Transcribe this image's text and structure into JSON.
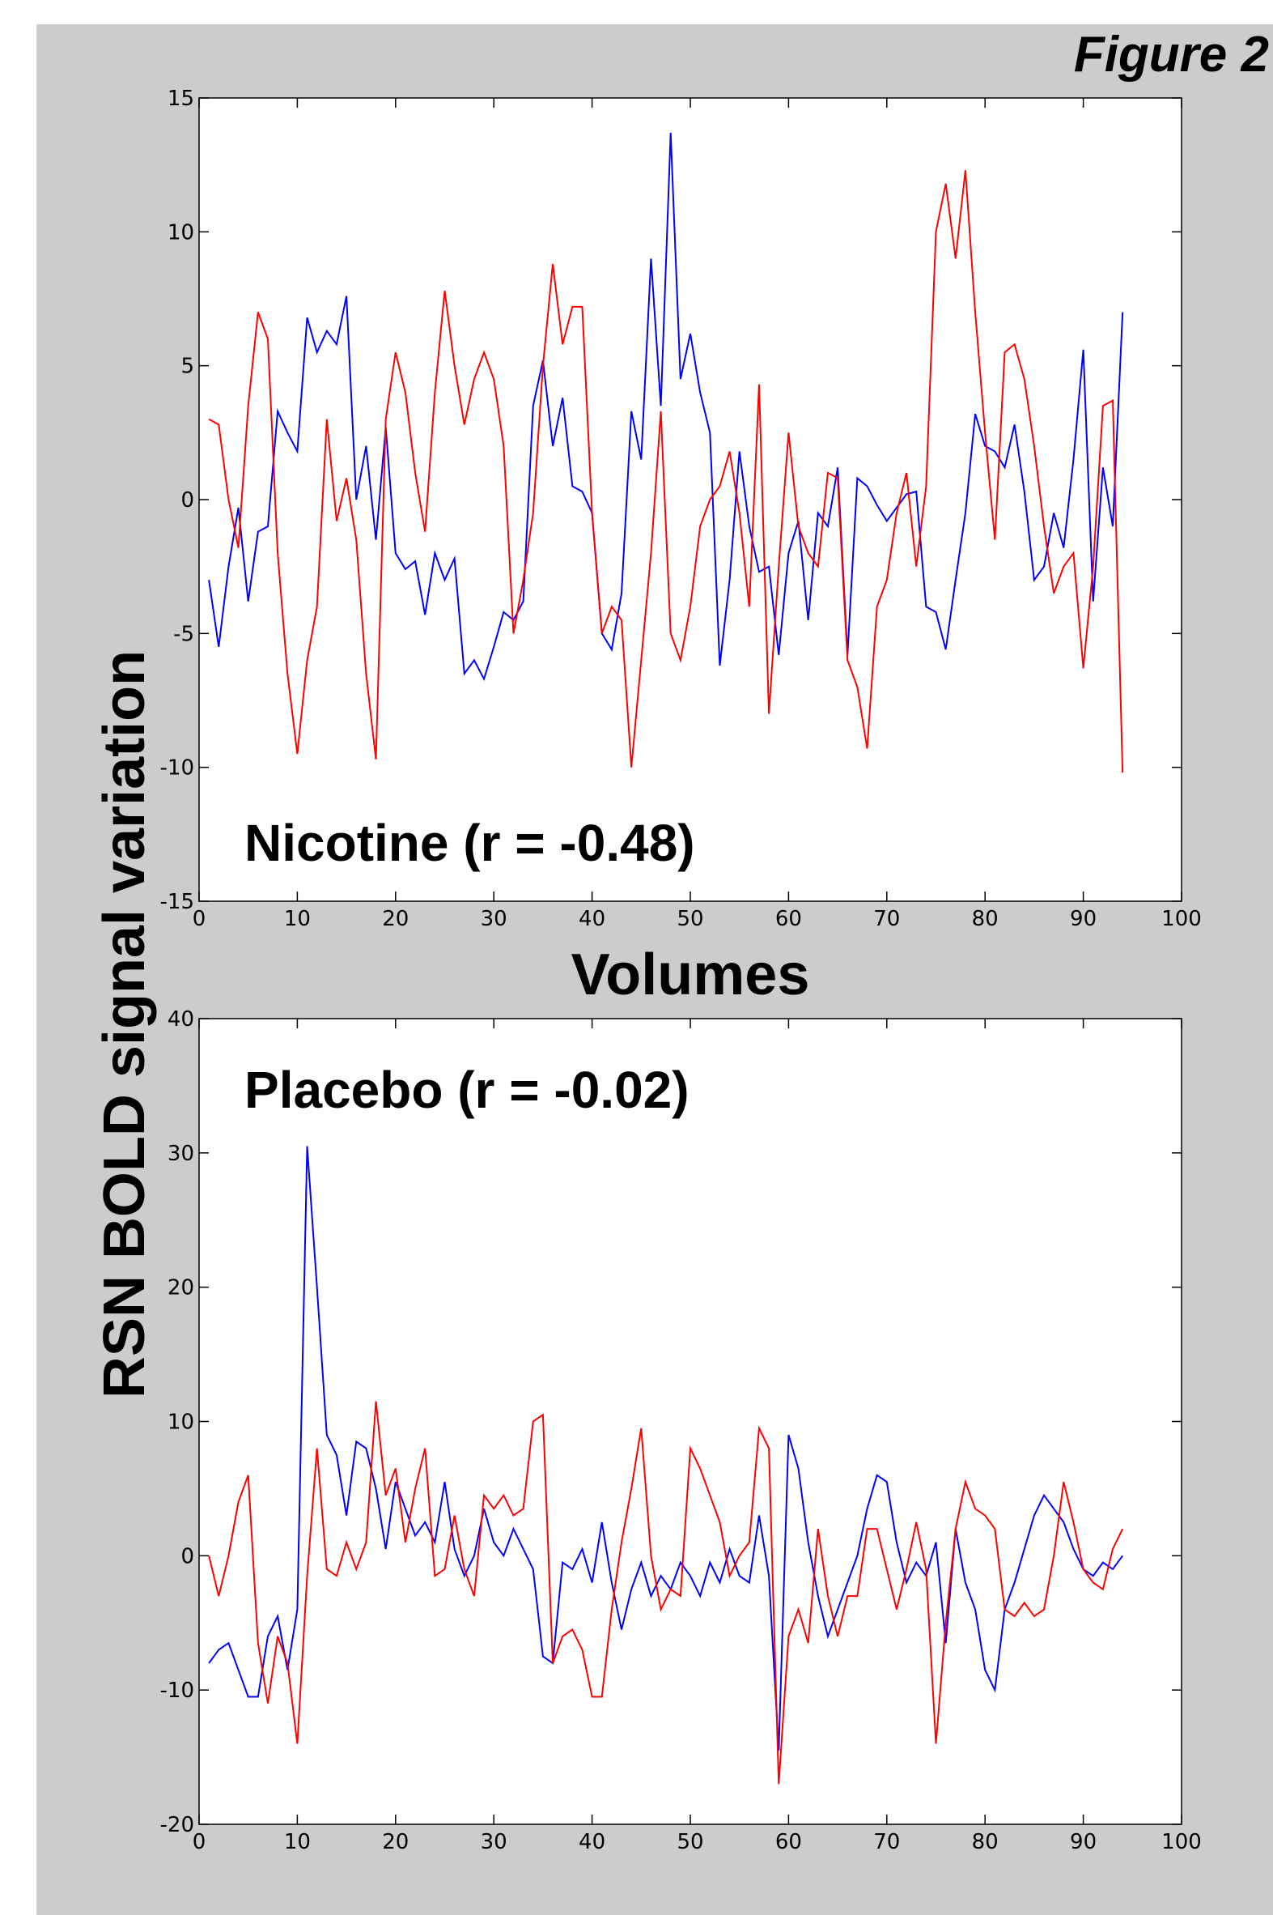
{
  "title": "Figure 2",
  "ylabel": "RSN BOLD signal variation",
  "chart_data": [
    {
      "type": "line",
      "annotation": "Nicotine (r = -0.48)",
      "xlabel": "Volumes",
      "xlim": [
        0,
        100
      ],
      "xticks": [
        0,
        10,
        20,
        30,
        40,
        50,
        60,
        70,
        80,
        90,
        100
      ],
      "ylim": [
        -15,
        15
      ],
      "yticks": [
        -15,
        -10,
        -5,
        0,
        5,
        10,
        15
      ],
      "x": [
        1,
        2,
        3,
        4,
        5,
        6,
        7,
        8,
        9,
        10,
        11,
        12,
        13,
        14,
        15,
        16,
        17,
        18,
        19,
        20,
        21,
        22,
        23,
        24,
        25,
        26,
        27,
        28,
        29,
        30,
        31,
        32,
        33,
        34,
        35,
        36,
        37,
        38,
        39,
        40,
        41,
        42,
        43,
        44,
        45,
        46,
        47,
        48,
        49,
        50,
        51,
        52,
        53,
        54,
        55,
        56,
        57,
        58,
        59,
        60,
        61,
        62,
        63,
        64,
        65,
        66,
        67,
        68,
        69,
        70,
        71,
        72,
        73,
        74,
        75,
        76,
        77,
        78,
        79,
        80,
        81,
        82,
        83,
        84,
        85,
        86,
        87,
        88,
        89,
        90,
        91,
        92,
        93,
        94
      ],
      "series": [
        {
          "color": "#0000ff",
          "values": [
            -3,
            -5.5,
            -2.5,
            -0.3,
            -3.8,
            -1.2,
            -1,
            3.3,
            2.5,
            1.8,
            6.8,
            5.5,
            6.3,
            5.8,
            7.6,
            0,
            2,
            -1.5,
            2.7,
            -2,
            -2.6,
            -2.3,
            -4.3,
            -2,
            -3,
            -2.2,
            -6.5,
            -6,
            -6.7,
            -5.5,
            -4.2,
            -4.5,
            -3.8,
            3.5,
            5.2,
            2,
            3.8,
            0.5,
            0.3,
            -0.5,
            -5,
            -5.6,
            -3.5,
            3.3,
            1.5,
            9,
            3.5,
            13.7,
            4.5,
            6.2,
            4,
            2.5,
            -6.2,
            -3,
            1.8,
            -1,
            -2.7,
            -2.5,
            -5.8,
            -2,
            -0.8,
            -4.5,
            -0.5,
            -1,
            1.2,
            -5.8,
            0.8,
            0.5,
            -0.2,
            -0.8,
            -0.3,
            0.2,
            0.3,
            -4,
            -4.2,
            -5.6,
            -3,
            -0.5,
            3.2,
            2,
            1.8,
            1.2,
            2.8,
            0.3,
            -3,
            -2.5,
            -0.5,
            -1.8,
            1.5,
            5.6,
            -3.8,
            1.2,
            -1,
            7
          ]
        },
        {
          "color": "#ff0000",
          "values": [
            3,
            2.8,
            0,
            -1.8,
            3.5,
            7,
            6,
            -2,
            -6.5,
            -9.5,
            -6,
            -4,
            3,
            -0.8,
            0.8,
            -1.5,
            -6.5,
            -9.7,
            3,
            5.5,
            4,
            1,
            -1.2,
            4,
            7.8,
            5,
            2.8,
            4.5,
            5.5,
            4.5,
            2,
            -5,
            -3,
            -0.5,
            5,
            8.8,
            5.8,
            7.2,
            7.2,
            -0.5,
            -5,
            -4,
            -4.5,
            -10,
            -6,
            -2,
            3.3,
            -5,
            -6,
            -4,
            -1,
            0,
            0.5,
            1.8,
            -0.5,
            -4,
            4.3,
            -8,
            -2.5,
            2.5,
            -1,
            -2,
            -2.5,
            1,
            0.8,
            -6,
            -7,
            -9.3,
            -4,
            -3,
            -0.5,
            1,
            -2.5,
            0.5,
            10,
            11.8,
            9,
            12.3,
            7,
            2.5,
            -1.5,
            5.5,
            5.8,
            4.5,
            2,
            -1,
            -3.5,
            -2.5,
            -2,
            -6.3,
            -2.5,
            3.5,
            3.7,
            -10.2
          ]
        }
      ]
    },
    {
      "type": "line",
      "annotation": "Placebo (r = -0.02)",
      "xlim": [
        0,
        100
      ],
      "xticks": [
        0,
        10,
        20,
        30,
        40,
        50,
        60,
        70,
        80,
        90,
        100
      ],
      "ylim": [
        -20,
        40
      ],
      "yticks": [
        -20,
        -10,
        0,
        10,
        20,
        30,
        40
      ],
      "x": [
        1,
        2,
        3,
        4,
        5,
        6,
        7,
        8,
        9,
        10,
        11,
        12,
        13,
        14,
        15,
        16,
        17,
        18,
        19,
        20,
        21,
        22,
        23,
        24,
        25,
        26,
        27,
        28,
        29,
        30,
        31,
        32,
        33,
        34,
        35,
        36,
        37,
        38,
        39,
        40,
        41,
        42,
        43,
        44,
        45,
        46,
        47,
        48,
        49,
        50,
        51,
        52,
        53,
        54,
        55,
        56,
        57,
        58,
        59,
        60,
        61,
        62,
        63,
        64,
        65,
        66,
        67,
        68,
        69,
        70,
        71,
        72,
        73,
        74,
        75,
        76,
        77,
        78,
        79,
        80,
        81,
        82,
        83,
        84,
        85,
        86,
        87,
        88,
        89,
        90,
        91,
        92,
        93,
        94
      ],
      "series": [
        {
          "color": "#0000ff",
          "values": [
            -8,
            -7,
            -6.5,
            -8.5,
            -10.5,
            -10.5,
            -6,
            -4.5,
            -8.5,
            -4,
            30.5,
            20,
            9,
            7.5,
            3,
            8.5,
            8,
            5,
            0.5,
            5.5,
            3.5,
            1.5,
            2.5,
            1,
            5.5,
            0.5,
            -1.5,
            0,
            3.5,
            1,
            0,
            2,
            0.5,
            -1,
            -7.5,
            -8,
            -0.5,
            -1,
            0.5,
            -2,
            2.5,
            -2,
            -5.5,
            -2.5,
            -0.5,
            -3,
            -1.5,
            -2.5,
            -0.5,
            -1.5,
            -3,
            -0.5,
            -2,
            0.5,
            -1.5,
            -2,
            3,
            -1.5,
            -14.5,
            9,
            6.5,
            1,
            -3,
            -6,
            -4,
            -2,
            0,
            3.5,
            6,
            5.5,
            1,
            -2,
            -0.5,
            -1.5,
            1,
            -6.5,
            2,
            -2,
            -4,
            -8.5,
            -10,
            -4,
            -2,
            0.5,
            3,
            4.5,
            3.5,
            2.5,
            0.5,
            -1,
            -1.5,
            -0.5,
            -1,
            0
          ]
        },
        {
          "color": "#ff0000",
          "values": [
            0,
            -3,
            0,
            4,
            6,
            -6.5,
            -11,
            -6,
            -8,
            -14,
            -1.5,
            8,
            -1,
            -1.5,
            1,
            -1,
            1,
            11.5,
            4.5,
            6.5,
            1,
            5,
            8,
            -1.5,
            -1,
            3,
            -1,
            -3,
            4.5,
            3.5,
            4.5,
            3,
            3.5,
            10,
            10.5,
            -8,
            -6,
            -5.5,
            -7,
            -10.5,
            -10.5,
            -4,
            1,
            5,
            9.5,
            0,
            -4,
            -2.5,
            -3,
            8,
            6.5,
            4.5,
            2.5,
            -1.5,
            0,
            1,
            9.5,
            8,
            -17,
            -6,
            -4,
            -6.5,
            2,
            -3,
            -6,
            -3,
            -3,
            2,
            2,
            -1,
            -4,
            -1,
            2.5,
            -1,
            -14,
            -5,
            2,
            5.5,
            3.5,
            3,
            2,
            -4,
            -4.5,
            -3.5,
            -4.5,
            -4,
            0,
            5.5,
            2.5,
            -1,
            -2,
            -2.5,
            0.5,
            2
          ]
        }
      ]
    }
  ]
}
